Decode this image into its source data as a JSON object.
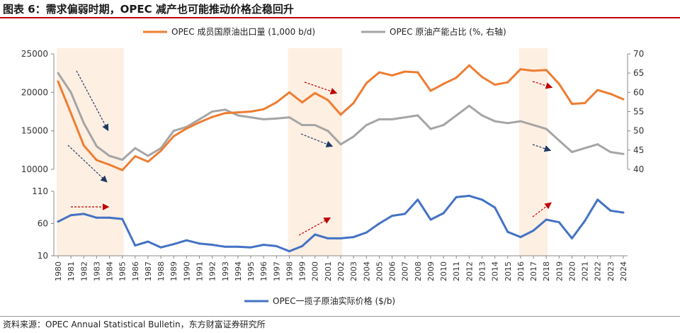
{
  "title": "图表 6：需求偏弱时期，OPEC 减产也可能推动价格企稳回升",
  "source": "资料来源：OPEC Annual Statistical Bulletin，东方财富证券研究所",
  "chart_data": [
    {
      "type": "line",
      "legend_position": "top",
      "x": [
        1980,
        1981,
        1982,
        1983,
        1984,
        1985,
        1986,
        1987,
        1988,
        1989,
        1990,
        1991,
        1992,
        1993,
        1994,
        1995,
        1996,
        1997,
        1998,
        1999,
        2000,
        2001,
        2002,
        2003,
        2004,
        2005,
        2006,
        2007,
        2008,
        2009,
        2010,
        2011,
        2012,
        2013,
        2014,
        2015,
        2016,
        2017,
        2018,
        2019,
        2020,
        2021,
        2022,
        2023,
        2024
      ],
      "series": [
        {
          "name": "OPEC 成员国原油出口量 (1,000 b/d)",
          "axis": "left",
          "color": "#ed7d31",
          "values": [
            21400,
            17300,
            13100,
            11200,
            10600,
            9900,
            11700,
            11000,
            12400,
            14300,
            15300,
            16100,
            16800,
            17300,
            17400,
            17500,
            17800,
            18700,
            20000,
            18700,
            19900,
            19000,
            17100,
            18600,
            21200,
            22600,
            22200,
            22700,
            22600,
            20200,
            21100,
            21900,
            23500,
            22000,
            21000,
            21300,
            23000,
            22800,
            22900,
            21100,
            18500,
            18600,
            20300,
            19800,
            19100
          ]
        },
        {
          "name": "OPEC 原油产能占比 (%, 右轴)",
          "axis": "right",
          "color": "#a5a5a5",
          "values": [
            65,
            60,
            52,
            46,
            43.5,
            42.5,
            45.5,
            43.5,
            45.5,
            50,
            51,
            53,
            55,
            55.5,
            54,
            53.5,
            53,
            53.2,
            53.5,
            51.5,
            51.5,
            50,
            46.5,
            48.5,
            51.5,
            53,
            53,
            53.5,
            54,
            50.5,
            51.5,
            54,
            56.5,
            54,
            52.5,
            52,
            52.5,
            51.5,
            50.5,
            47.5,
            44.5,
            45.5,
            46.5,
            44.5,
            44
          ]
        }
      ],
      "ylim_left": [
        10000,
        25000
      ],
      "yticks_left": [
        "10000",
        "15000",
        "20000",
        "25000"
      ],
      "ylim_right": [
        40,
        70
      ],
      "yticks_right": [
        "40",
        "45",
        "50",
        "55",
        "60",
        "65",
        "70"
      ],
      "highlight_periods": [
        [
          1980,
          1985
        ],
        [
          1998,
          2002
        ],
        [
          2016,
          2018
        ]
      ]
    },
    {
      "type": "line",
      "legend_position": "bottom",
      "x": [
        1980,
        1981,
        1982,
        1983,
        1984,
        1985,
        1986,
        1987,
        1988,
        1989,
        1990,
        1991,
        1992,
        1993,
        1994,
        1995,
        1996,
        1997,
        1998,
        1999,
        2000,
        2001,
        2002,
        2003,
        2004,
        2005,
        2006,
        2007,
        2008,
        2009,
        2010,
        2011,
        2012,
        2013,
        2014,
        2015,
        2016,
        2017,
        2018,
        2019,
        2020,
        2021,
        2022,
        2023,
        2024
      ],
      "series": [
        {
          "name": "OPEC一揽子原油实际价格 ($/b)",
          "color": "#4472c4",
          "values": [
            63,
            73,
            75,
            69,
            69,
            67,
            26,
            32,
            23,
            28,
            34,
            29,
            27,
            24,
            24,
            23,
            27,
            25,
            17,
            25,
            43,
            37,
            37,
            39,
            46,
            60,
            72,
            75,
            97,
            66,
            76,
            101,
            103,
            97,
            85,
            47,
            39,
            49,
            66,
            62,
            37,
            64,
            97,
            80,
            77
          ]
        }
      ],
      "ylim": [
        10,
        110
      ],
      "yticks": [
        "10",
        "60",
        "110"
      ],
      "highlight_periods": [
        [
          1980,
          1985
        ],
        [
          1998,
          2002
        ],
        [
          2016,
          2018
        ]
      ]
    }
  ]
}
